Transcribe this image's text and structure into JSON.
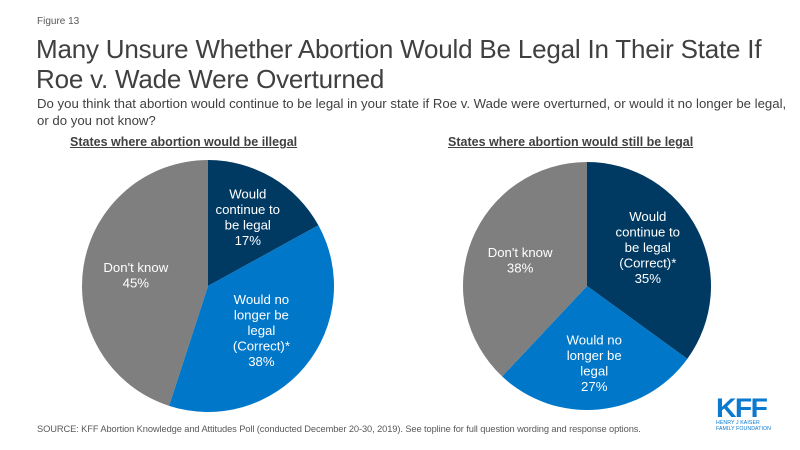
{
  "figure_label": "Figure 13",
  "title": "Many Unsure Whether Abortion Would Be Legal In Their State If Roe v. Wade Were Overturned",
  "subtitle": "Do you think that abortion would continue to be legal in your state if Roe v. Wade were overturned, or would it no longer be legal, or do you not know?",
  "source": "SOURCE: KFF Abortion Knowledge and Attitudes Poll (conducted December 20-30, 2019). See topline for full question wording and response options.",
  "logo": {
    "main": "KFF",
    "line1": "HENRY J KAISER",
    "line2": "FAMILY FOUNDATION"
  },
  "colors": {
    "dark_blue": "#003a63",
    "blue": "#0077c8",
    "gray": "#7f7f7f"
  },
  "chart_data": [
    {
      "type": "pie",
      "title": "States where abortion would be illegal",
      "unit": "%",
      "start": "12 o'clock, clockwise",
      "slices": [
        {
          "label_lines": [
            "Would",
            "continue to",
            "be legal",
            "17%"
          ],
          "name": "Would continue to be legal",
          "value": 17,
          "color": "#003a63"
        },
        {
          "label_lines": [
            "Would no",
            "longer be",
            "legal",
            "(Correct)*",
            "38%"
          ],
          "name": "Would no longer be legal (Correct)*",
          "value": 38,
          "color": "#0077c8"
        },
        {
          "label_lines": [
            "Don't know",
            "45%"
          ],
          "name": "Don't know",
          "value": 45,
          "color": "#7f7f7f"
        }
      ]
    },
    {
      "type": "pie",
      "title": "States where abortion would still be legal",
      "unit": "%",
      "start": "12 o'clock, clockwise",
      "slices": [
        {
          "label_lines": [
            "Would",
            "continue to",
            "be legal",
            "(Correct)*",
            "35%"
          ],
          "name": "Would continue to be legal (Correct)*",
          "value": 35,
          "color": "#003a63"
        },
        {
          "label_lines": [
            "Would no",
            "longer be",
            "legal",
            "27%"
          ],
          "name": "Would no longer be legal",
          "value": 27,
          "color": "#0077c8"
        },
        {
          "label_lines": [
            "Don't know",
            "38%"
          ],
          "name": "Don't know",
          "value": 38,
          "color": "#7f7f7f"
        }
      ]
    }
  ]
}
